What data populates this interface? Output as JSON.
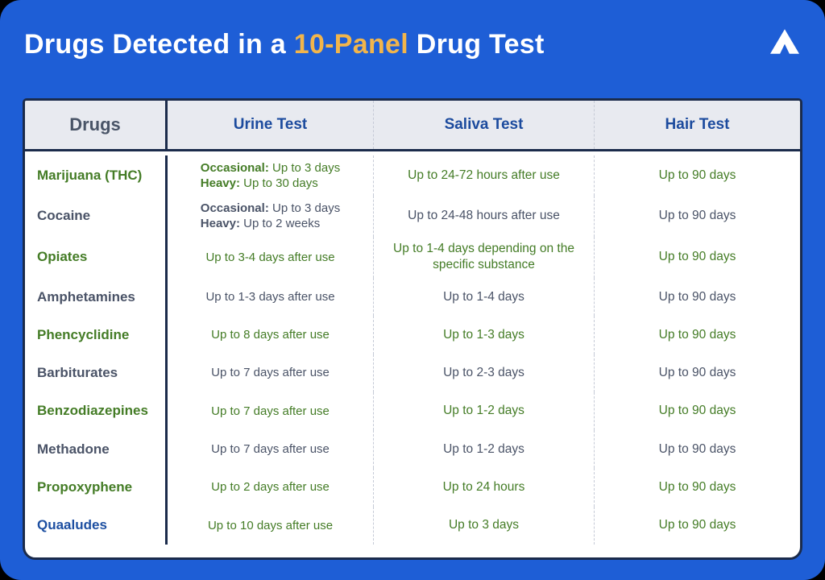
{
  "colors": {
    "page_background": "#1E5ED6",
    "accent_yellow": "#F2B54B",
    "table_border": "#1B2B4B",
    "header_background": "#E8EAF0",
    "header_blue": "#1C4B9E",
    "drugs_header_slate": "#4A5568",
    "row_slate": "#4A5367",
    "row_green": "#447C26",
    "quaaludes_blue": "#1D4FA1",
    "dashed_divider": "#C5CAD6"
  },
  "header": {
    "title": [
      {
        "text": "Drugs Detected in a "
      },
      {
        "text": "10-Panel"
      },
      {
        "text": " Drug Test"
      }
    ],
    "logo_icon": "mountain-caret-icon"
  },
  "table": {
    "columns": [
      "Drugs",
      "Urine Test",
      "Saliva Test",
      "Hair Test"
    ],
    "rows": [
      {
        "drug": "Marijuana (THC)",
        "name_theme": "green",
        "value_theme": "green",
        "urine": [
          {
            "bold": "Occasional:",
            "text": " Up to 3 days"
          },
          {
            "bold": "Heavy:",
            "text": " Up to 30 days"
          }
        ],
        "saliva": "Up to 24-72 hours after use",
        "hair": "Up to 90 days"
      },
      {
        "drug": "Cocaine",
        "name_theme": "slate",
        "value_theme": "slate",
        "urine": [
          {
            "bold": "Occasional:",
            "text": " Up to 3 days"
          },
          {
            "bold": "Heavy:",
            "text": " Up to 2 weeks"
          }
        ],
        "saliva": "Up to 24-48 hours after use",
        "hair": "Up to 90 days"
      },
      {
        "drug": "Opiates",
        "name_theme": "green",
        "value_theme": "green",
        "urine": [
          {
            "text": "Up to 3-4 days after use"
          }
        ],
        "saliva": "Up to 1-4 days depending on the specific substance",
        "hair": "Up to 90 days"
      },
      {
        "drug": "Amphetamines",
        "name_theme": "slate",
        "value_theme": "slate",
        "urine": [
          {
            "text": "Up to 1-3 days after use"
          }
        ],
        "saliva": "Up to 1-4 days",
        "hair": "Up to 90 days"
      },
      {
        "drug": "Phencyclidine",
        "name_theme": "green",
        "value_theme": "green",
        "urine": [
          {
            "text": "Up to 8 days after use"
          }
        ],
        "saliva": "Up to 1-3 days",
        "hair": "Up to 90 days"
      },
      {
        "drug": "Barbiturates",
        "name_theme": "slate",
        "value_theme": "slate",
        "urine": [
          {
            "text": "Up to 7 days after use"
          }
        ],
        "saliva": "Up to 2-3 days",
        "hair": "Up to 90 days"
      },
      {
        "drug": "Benzodiazepines",
        "name_theme": "green",
        "value_theme": "green",
        "urine": [
          {
            "text": "Up to 7 days after use"
          }
        ],
        "saliva": "Up to 1-2 days",
        "hair": "Up to 90 days"
      },
      {
        "drug": "Methadone",
        "name_theme": "slate",
        "value_theme": "slate",
        "urine": [
          {
            "text": "Up to 7 days after use"
          }
        ],
        "saliva": "Up to 1-2 days",
        "hair": "Up to 90 days"
      },
      {
        "drug": "Propoxyphene",
        "name_theme": "green",
        "value_theme": "green",
        "urine": [
          {
            "text": "Up to 2 days after use"
          }
        ],
        "saliva": "Up to 24 hours",
        "hair": "Up to 90 days"
      },
      {
        "drug": "Quaaludes",
        "name_theme": "blue",
        "value_theme": "green",
        "urine": [
          {
            "text": "Up to 10 days after use"
          }
        ],
        "saliva": "Up to 3 days",
        "hair": "Up to 90 days"
      }
    ]
  }
}
